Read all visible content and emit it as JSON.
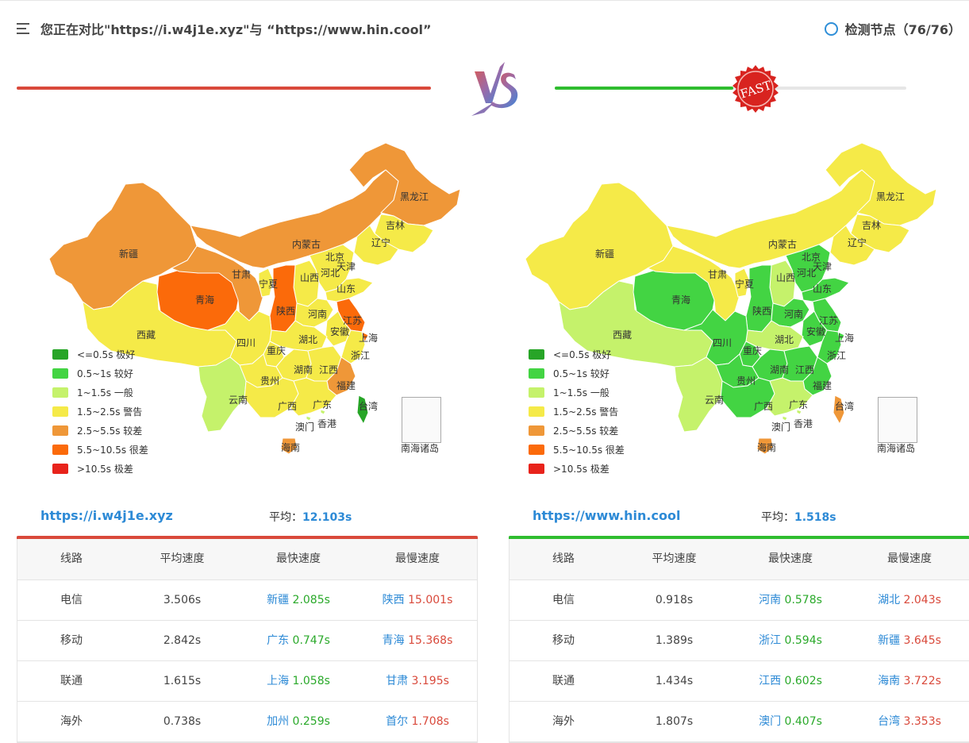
{
  "header": {
    "title": "您正在对比\"https://i.w4j1e.xyz\"与 “https://www.hin.cool”",
    "node_label": "检测节点（76/76）"
  },
  "vs": {
    "left_bar_color": "#d9493b",
    "right_bar_color": "#2fbd2f",
    "stamp_text": "FAST",
    "right_progress": 0.51
  },
  "legend": [
    {
      "label": "<=0.5s 极好",
      "color": "#27a527"
    },
    {
      "label": "0.5~1s 较好",
      "color": "#43d443"
    },
    {
      "label": "1~1.5s 一般",
      "color": "#c5f26b"
    },
    {
      "label": "1.5~2.5s 警告",
      "color": "#f5ea48"
    },
    {
      "label": "2.5~5.5s 较差",
      "color": "#ef9738"
    },
    {
      "label": "5.5~10.5s 很差",
      "color": "#fb6a0a"
    },
    {
      "label": ">10.5s 极差",
      "color": "#e8231b"
    }
  ],
  "south_sea_label": "南海诸岛",
  "provinces": [
    "新疆",
    "西藏",
    "青海",
    "甘肃",
    "宁夏",
    "内蒙古",
    "黑龙江",
    "吉林",
    "辽宁",
    "北京",
    "天津",
    "河北",
    "山西",
    "陕西",
    "山东",
    "河南",
    "江苏",
    "安徽",
    "上海",
    "湖北",
    "四川",
    "重庆",
    "浙江",
    "湖南",
    "江西",
    "贵州",
    "福建",
    "云南",
    "广西",
    "广东",
    "台湾",
    "香港",
    "澳门",
    "海南"
  ],
  "left": {
    "url": "https://i.w4j1e.xyz",
    "avg_label": "平均：",
    "avg_value": "12.103s",
    "accent": "#d9493b",
    "map_colors": {
      "新疆": "#ef9738",
      "西藏": "#f5ea48",
      "青海": "#fb6a0a",
      "甘肃": "#ef9738",
      "宁夏": "#f5ea48",
      "内蒙古": "#ef9738",
      "黑龙江": "#ef9738",
      "吉林": "#f5ea48",
      "辽宁": "#f5ea48",
      "北京": "#f5ea48",
      "天津": "#f5ea48",
      "河北": "#f5ea48",
      "山西": "#f5ea48",
      "陕西": "#fb6a0a",
      "山东": "#f5ea48",
      "河南": "#f5ea48",
      "江苏": "#fb6a0a",
      "安徽": "#f5ea48",
      "上海": "#fb6a0a",
      "湖北": "#f5ea48",
      "四川": "#f5ea48",
      "重庆": "#f5ea48",
      "浙江": "#f5ea48",
      "湖南": "#f5ea48",
      "江西": "#f5ea48",
      "贵州": "#f5ea48",
      "福建": "#ef9738",
      "云南": "#c5f26b",
      "广西": "#f5ea48",
      "广东": "#f5ea48",
      "台湾": "#27a527",
      "香港": "#c5f26b",
      "澳门": "#c5f26b",
      "海南": "#ef9738"
    },
    "table": {
      "headers": [
        "线路",
        "平均速度",
        "最快速度",
        "最慢速度"
      ],
      "rows": [
        {
          "line": "电信",
          "avg": "3.506s",
          "fast_prov": "新疆",
          "fast_val": "2.085s",
          "slow_prov": "陕西",
          "slow_val": "15.001s"
        },
        {
          "line": "移动",
          "avg": "2.842s",
          "fast_prov": "广东",
          "fast_val": "0.747s",
          "slow_prov": "青海",
          "slow_val": "15.368s"
        },
        {
          "line": "联通",
          "avg": "1.615s",
          "fast_prov": "上海",
          "fast_val": "1.058s",
          "slow_prov": "甘肃",
          "slow_val": "3.195s"
        },
        {
          "line": "海外",
          "avg": "0.738s",
          "fast_prov": "加州",
          "fast_val": "0.259s",
          "slow_prov": "首尔",
          "slow_val": "1.708s"
        }
      ]
    }
  },
  "right": {
    "url": "https://www.hin.cool",
    "avg_label": "平均：",
    "avg_value": "1.518s",
    "accent": "#2fbd2f",
    "map_colors": {
      "新疆": "#f5ea48",
      "西藏": "#c5f26b",
      "青海": "#43d443",
      "甘肃": "#f5ea48",
      "宁夏": "#f5ea48",
      "内蒙古": "#f5ea48",
      "黑龙江": "#f5ea48",
      "吉林": "#f5ea48",
      "辽宁": "#f5ea48",
      "北京": "#43d443",
      "天津": "#43d443",
      "河北": "#43d443",
      "山西": "#c5f26b",
      "陕西": "#43d443",
      "山东": "#43d443",
      "河南": "#43d443",
      "江苏": "#43d443",
      "安徽": "#43d443",
      "上海": "#43d443",
      "湖北": "#c5f26b",
      "四川": "#43d443",
      "重庆": "#43d443",
      "浙江": "#43d443",
      "湖南": "#43d443",
      "江西": "#43d443",
      "贵州": "#43d443",
      "福建": "#43d443",
      "云南": "#c5f26b",
      "广西": "#43d443",
      "广东": "#c5f26b",
      "台湾": "#ef9738",
      "香港": "#c5f26b",
      "澳门": "#c5f26b",
      "海南": "#ef9738"
    },
    "table": {
      "headers": [
        "线路",
        "平均速度",
        "最快速度",
        "最慢速度"
      ],
      "rows": [
        {
          "line": "电信",
          "avg": "0.918s",
          "fast_prov": "河南",
          "fast_val": "0.578s",
          "slow_prov": "湖北",
          "slow_val": "2.043s"
        },
        {
          "line": "移动",
          "avg": "1.389s",
          "fast_prov": "浙江",
          "fast_val": "0.594s",
          "slow_prov": "新疆",
          "slow_val": "3.645s"
        },
        {
          "line": "联通",
          "avg": "1.434s",
          "fast_prov": "江西",
          "fast_val": "0.602s",
          "slow_prov": "海南",
          "slow_val": "3.722s"
        },
        {
          "line": "海外",
          "avg": "1.807s",
          "fast_prov": "澳门",
          "fast_val": "0.407s",
          "slow_prov": "台湾",
          "slow_val": "3.353s"
        }
      ]
    }
  }
}
